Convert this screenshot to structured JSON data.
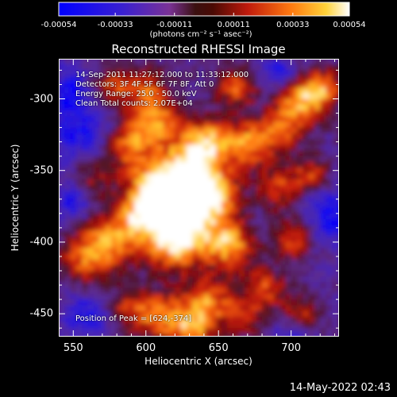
{
  "chart_data": {
    "type": "heatmap",
    "title": "Reconstructed RHESSI Image",
    "xlabel": "Heliocentric X (arcsec)",
    "ylabel": "Heliocentric Y (arcsec)",
    "xlim": [
      540,
      733
    ],
    "ylim": [
      -466,
      -272
    ],
    "x_ticks": [
      550,
      600,
      650,
      700
    ],
    "y_ticks": [
      -300,
      -350,
      -400,
      -450
    ],
    "colorbar": {
      "range": [
        -0.00054,
        0.00054
      ],
      "tick_values": [
        -0.00054,
        -0.00033,
        -0.00011,
        0.00011,
        0.00033,
        0.00054
      ],
      "tick_labels": [
        "-0.00054",
        "-0.00033",
        "-0.00011",
        "0.00011",
        "0.00033",
        "0.00054"
      ],
      "units": "(photons cm⁻² s⁻¹ asec⁻²)",
      "colormap": "blue-purple-red-yellow-white"
    },
    "info": [
      "14-Sep-2011 11:27:12.000 to 11:33:12.000",
      "Detectors: 3F 4F 5F 6F 7F 8F, Att 0",
      "Energy Range: 25.0 - 50.0 keV",
      "Clean     Total counts: 2.07E+04"
    ],
    "peak_text": "Position of Peak = [624,-374]",
    "peak": [
      624,
      -374
    ]
  },
  "footer": {
    "date": "14-May-2022 02:43"
  },
  "colors": {
    "background": "#000000",
    "cmap_low": "#0000ff",
    "cmap_purple": "#6f2f9a",
    "cmap_red": "#c41c0e",
    "cmap_orange": "#ff9416",
    "cmap_high": "#ffffff"
  }
}
